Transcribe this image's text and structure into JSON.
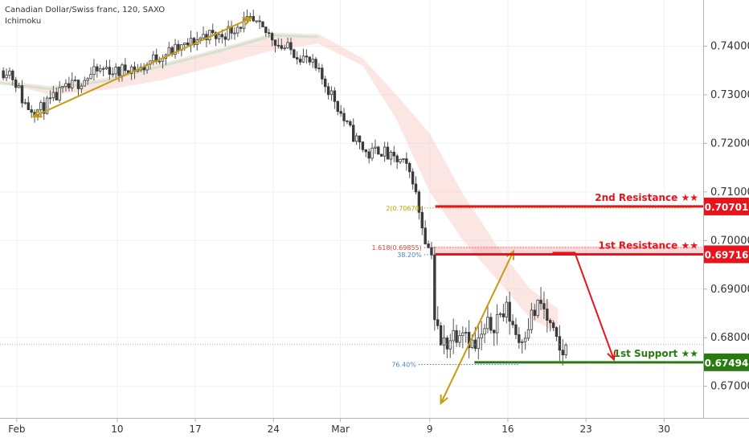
{
  "header": {
    "symbol": "Canadian Dollar/Swiss franc, 120, SAXO",
    "indicator": "Ichimoku"
  },
  "chart_data": {
    "type": "candlestick",
    "x_ticks": [
      {
        "label": "Feb",
        "day": 0
      },
      {
        "label": "10",
        "day": 9
      },
      {
        "label": "17",
        "day": 16
      },
      {
        "label": "24",
        "day": 23
      },
      {
        "label": "Mar",
        "day": 29
      },
      {
        "label": "9",
        "day": 37
      },
      {
        "label": "16",
        "day": 44
      },
      {
        "label": "23",
        "day": 51
      },
      {
        "label": "30",
        "day": 58
      }
    ],
    "y_ticks": [
      "0.67000",
      "0.68000",
      "0.69000",
      "0.70000",
      "0.71000",
      "0.72000",
      "0.73000",
      "0.74000"
    ],
    "ylim": [
      0.6635,
      0.7495
    ],
    "xlim": [
      -1.5,
      61.5
    ],
    "levels": [
      {
        "name": "2nd Resistance ★★",
        "price": 0.70701,
        "label": "0.70701",
        "color": "#e8141c"
      },
      {
        "name": "1st Resistance ★★",
        "price": 0.69716,
        "label": "0.69716",
        "color": "#e8141c"
      },
      {
        "name": "1st Support ★★",
        "price": 0.67494,
        "label": "0.67494",
        "color": "#2a7a12"
      }
    ],
    "fib_labels": [
      {
        "text": "2(0.70670)",
        "price": 0.7067,
        "color": "#c8a000"
      },
      {
        "text": "1.618(0.69855)",
        "price": 0.69855,
        "color": "#d8403a"
      },
      {
        "text": "38.20%",
        "price": 0.6971,
        "color": "#4a82c8"
      },
      {
        "text": "76.40%",
        "price": 0.6745,
        "color": "#4a82c8"
      }
    ],
    "current_price": 0.6786,
    "trend_arrows": [
      {
        "from": [
          1.5,
          0.7255
        ],
        "to": [
          21,
          0.7458
        ],
        "color": "#c89a10"
      },
      {
        "from": [
          38,
          0.6665
        ],
        "to": [
          44.5,
          0.6978
        ],
        "color": "#c89a10"
      }
    ],
    "forecast_arrow": {
      "points": [
        [
          48,
          0.6975
        ],
        [
          50,
          0.6975
        ],
        [
          53.5,
          0.6755
        ]
      ],
      "color": "#e8141c"
    },
    "path": [
      [
        -1.5,
        0.7345
      ],
      [
        -0.8,
        0.7355
      ],
      [
        0,
        0.7322
      ],
      [
        0.5,
        0.729
      ],
      [
        1,
        0.7275
      ],
      [
        2,
        0.7268
      ],
      [
        3,
        0.7285
      ],
      [
        4,
        0.7305
      ],
      [
        5,
        0.7318
      ],
      [
        6,
        0.7332
      ],
      [
        7,
        0.7345
      ],
      [
        8,
        0.7355
      ],
      [
        9,
        0.7345
      ],
      [
        10,
        0.7358
      ],
      [
        11,
        0.735
      ],
      [
        12,
        0.737
      ],
      [
        13,
        0.7383
      ],
      [
        14,
        0.739
      ],
      [
        15,
        0.7398
      ],
      [
        16,
        0.7412
      ],
      [
        17,
        0.7425
      ],
      [
        18,
        0.7418
      ],
      [
        19,
        0.7432
      ],
      [
        20,
        0.7445
      ],
      [
        21,
        0.745
      ],
      [
        22,
        0.7432
      ],
      [
        23,
        0.7418
      ],
      [
        23.5,
        0.7402
      ],
      [
        24.5,
        0.7392
      ],
      [
        25.5,
        0.738
      ],
      [
        26.5,
        0.736
      ],
      [
        27.5,
        0.7328
      ],
      [
        28.5,
        0.729
      ],
      [
        29.5,
        0.7238
      ],
      [
        30.5,
        0.7205
      ],
      [
        31.5,
        0.7175
      ],
      [
        32.5,
        0.719
      ],
      [
        33.5,
        0.7168
      ],
      [
        34.5,
        0.7162
      ],
      [
        35.5,
        0.7128
      ],
      [
        35.8,
        0.7088
      ],
      [
        36.1,
        0.7055
      ],
      [
        36.8,
        0.6985
      ],
      [
        37.2,
        0.698
      ],
      [
        37.4,
        0.6845
      ],
      [
        38,
        0.6782
      ],
      [
        39,
        0.6805
      ],
      [
        40,
        0.683
      ],
      [
        41,
        0.6775
      ],
      [
        42,
        0.6812
      ],
      [
        43,
        0.6842
      ],
      [
        44,
        0.6855
      ],
      [
        45,
        0.6795
      ],
      [
        46,
        0.684
      ],
      [
        47,
        0.687
      ],
      [
        48,
        0.6805
      ],
      [
        48.6,
        0.6768
      ],
      [
        49.2,
        0.6775
      ]
    ],
    "cloud_upper": [
      [
        -1.5,
        0.733
      ],
      [
        3,
        0.7318
      ],
      [
        8,
        0.7335
      ],
      [
        13,
        0.7365
      ],
      [
        18,
        0.7395
      ],
      [
        23,
        0.7428
      ],
      [
        27,
        0.7425
      ],
      [
        31,
        0.7375
      ],
      [
        34,
        0.73
      ],
      [
        37,
        0.722
      ],
      [
        40,
        0.7095
      ],
      [
        43,
        0.699
      ],
      [
        46,
        0.69
      ],
      [
        48.5,
        0.686
      ]
    ],
    "cloud_lower": [
      [
        -1.5,
        0.7325
      ],
      [
        3,
        0.73
      ],
      [
        8,
        0.731
      ],
      [
        13,
        0.733
      ],
      [
        18,
        0.736
      ],
      [
        23,
        0.7392
      ],
      [
        27,
        0.7405
      ],
      [
        31,
        0.736
      ],
      [
        34,
        0.725
      ],
      [
        37,
        0.71
      ],
      [
        40,
        0.7
      ],
      [
        43,
        0.692
      ],
      [
        46,
        0.684
      ],
      [
        48.5,
        0.681
      ]
    ]
  }
}
